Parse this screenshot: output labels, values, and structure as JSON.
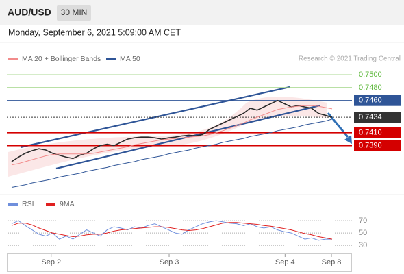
{
  "chart_data": [
    {
      "type": "line",
      "title": "AUD/USD",
      "timeframe": "30 MIN",
      "subtitle": "Monday, September 6, 2021 5:09:00 AM CET",
      "attribution": "Research © 2021 Trading Central",
      "xlim": [
        0,
        48
      ],
      "xticks": [
        {
          "value": 6.3,
          "label": "Sep 2"
        },
        {
          "value": 23.6,
          "label": "Sep 3"
        },
        {
          "value": 40.6,
          "label": "Sep 4"
        },
        {
          "value": 47.4,
          "label": "Sep 8"
        }
      ],
      "ylim": [
        0.7316,
        0.7515
      ],
      "yticks": [
        {
          "value": 0.75,
          "label": "0.7500"
        },
        {
          "value": 0.748,
          "label": "0.7480"
        },
        {
          "value": 0.746,
          "label": "0.7460"
        },
        {
          "value": 0.7434,
          "label": "0.7434"
        },
        {
          "value": 0.741,
          "label": "0.7410"
        },
        {
          "value": 0.739,
          "label": "0.7390"
        }
      ],
      "ytick_colors": [
        "#8fce6f",
        "#8fce6f",
        "#2f5597",
        "#333333",
        "#d40000",
        "#d40000"
      ],
      "ytick_label_filled": [
        false,
        false,
        true,
        true,
        true,
        true
      ],
      "ytick_dashed": [
        false,
        false,
        false,
        true,
        false,
        false
      ],
      "series": [
        {
          "color": "#2a2a2a",
          "values": [
            0.7365,
            0.7372,
            0.7378,
            0.7382,
            0.7385,
            0.7383,
            0.7378,
            0.7375,
            0.7372,
            0.737,
            0.7375,
            0.7378,
            0.7385,
            0.739,
            0.7392,
            0.739,
            0.7395,
            0.74,
            0.7402,
            0.7403,
            0.7403,
            0.7402,
            0.74,
            0.7402,
            0.7403,
            0.7405,
            0.7406,
            0.7405,
            0.7407,
            0.7415,
            0.742,
            0.7425,
            0.743,
            0.7435,
            0.744,
            0.7448,
            0.7445,
            0.745,
            0.7455,
            0.746,
            0.7455,
            0.745,
            0.7452,
            0.745,
            0.7448,
            0.744,
            0.7437,
            0.7434
          ]
        },
        {
          "name": "MA 20 + Bollinger Bands",
          "color": "#f28b8b",
          "values": [
            0.736,
            0.7362,
            0.7365,
            0.7368,
            0.7371,
            0.7374,
            0.7376,
            0.7377,
            0.7377,
            0.7377,
            0.7377,
            0.7377,
            0.7378,
            0.738,
            0.7382,
            0.7384,
            0.7386,
            0.7388,
            0.7391,
            0.7393,
            0.7395,
            0.7397,
            0.7399,
            0.74,
            0.7401,
            0.7402,
            0.7403,
            0.7404,
            0.7405,
            0.7407,
            0.741,
            0.7413,
            0.7417,
            0.7421,
            0.7425,
            0.743,
            0.7434,
            0.7438,
            0.7442,
            0.7446,
            0.7448,
            0.745,
            0.7451,
            0.7452,
            0.7452,
            0.7451,
            0.7449,
            0.7447
          ]
        },
        {
          "name": "MA 50",
          "color": "#2f5597",
          "values": [
            0.7325,
            0.7327,
            0.7329,
            0.7332,
            0.7334,
            0.7336,
            0.7338,
            0.7341,
            0.7343,
            0.7345,
            0.7347,
            0.735,
            0.7352,
            0.7354,
            0.7356,
            0.7359,
            0.7361,
            0.7363,
            0.7365,
            0.7368,
            0.737,
            0.7372,
            0.7374,
            0.7377,
            0.7379,
            0.7381,
            0.7383,
            0.7386,
            0.7388,
            0.739,
            0.7392,
            0.7395,
            0.7397,
            0.7399,
            0.7401,
            0.7404,
            0.7406,
            0.7408,
            0.741,
            0.7413,
            0.7415,
            0.7417,
            0.7419,
            0.7422,
            0.7424,
            0.7426,
            0.7428,
            0.7431
          ]
        }
      ]
    },
    {
      "type": "line",
      "xlim": [
        0,
        48
      ],
      "ylim": [
        19,
        89
      ],
      "yticks": [
        30,
        50,
        70
      ],
      "series": [
        {
          "name": "RSI",
          "color": "#6f8fdc",
          "values": [
            65,
            70,
            62,
            55,
            48,
            45,
            50,
            40,
            45,
            40,
            48,
            55,
            50,
            45,
            55,
            60,
            58,
            55,
            60,
            58,
            62,
            65,
            60,
            55,
            50,
            48,
            55,
            60,
            65,
            68,
            70,
            68,
            66,
            65,
            62,
            65,
            60,
            58,
            60,
            55,
            52,
            50,
            45,
            40,
            42,
            38,
            40,
            40
          ]
        },
        {
          "name": "9MA",
          "color": "#e02020",
          "values": [
            62,
            66,
            66,
            63,
            58,
            54,
            50,
            48,
            46,
            44,
            45,
            47,
            48,
            48,
            50,
            53,
            55,
            56,
            57,
            58,
            59,
            60,
            60,
            59,
            57,
            55,
            54,
            55,
            57,
            60,
            63,
            66,
            67,
            67,
            66,
            65,
            64,
            62,
            61,
            59,
            57,
            55,
            52,
            49,
            47,
            44,
            42,
            40
          ]
        }
      ]
    }
  ]
}
